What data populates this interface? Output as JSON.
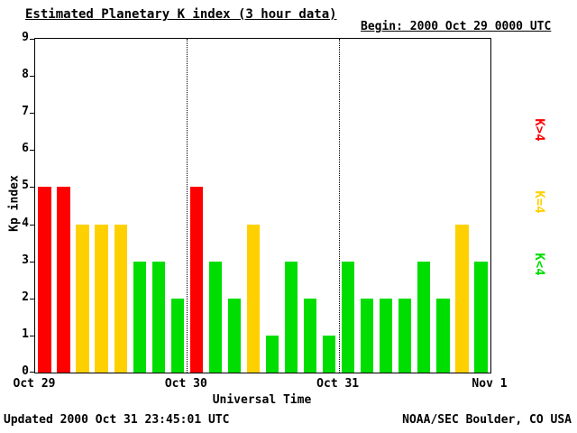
{
  "title": "Estimated Planetary K index (3 hour data)",
  "begin_label": "Begin: 2000 Oct 29 0000 UTC",
  "footer": {
    "updated": "Updated 2000 Oct 31 23:45:01 UTC",
    "credit": "NOAA/SEC Boulder, CO USA"
  },
  "legend": {
    "position": "right",
    "items": [
      {
        "label": "K>4",
        "color": "#ff0000"
      },
      {
        "label": "K=4",
        "color": "#ffd000"
      },
      {
        "label": "K<4",
        "color": "#00dd00"
      }
    ]
  },
  "chart_data": {
    "type": "bar",
    "title": "Estimated Planetary K index (3 hour data)",
    "xlabel": "Universal Time",
    "ylabel": "Kp index",
    "ylim": [
      0,
      9
    ],
    "y_ticks": [
      0,
      1,
      2,
      3,
      4,
      5,
      6,
      7,
      8,
      9
    ],
    "x_tick_labels": [
      "Oct 29",
      "Oct 30",
      "Oct 31",
      "Nov 1"
    ],
    "bars_per_day": 8,
    "interval_hours": 3,
    "values": [
      5,
      5,
      4,
      4,
      4,
      3,
      3,
      2,
      5,
      3,
      2,
      4,
      1,
      3,
      2,
      1,
      3,
      2,
      2,
      2,
      3,
      2,
      4,
      3
    ],
    "color_rule": {
      "gt4": "#ff0000",
      "eq4": "#ffd000",
      "lt4": "#00dd00"
    },
    "day_separator_indices": [
      8,
      16
    ],
    "grid": false,
    "legend_position": "right"
  }
}
